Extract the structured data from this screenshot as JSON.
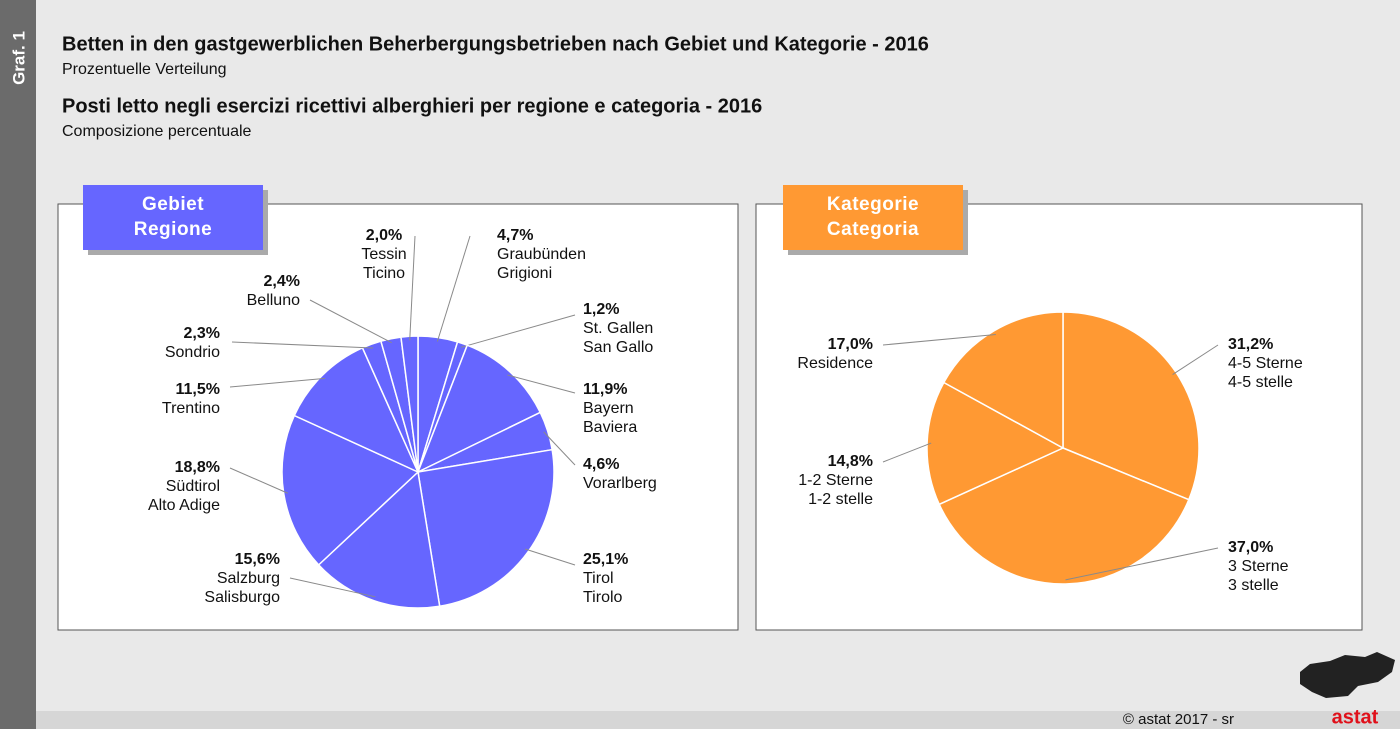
{
  "header": {
    "side_label": "Graf. 1",
    "title_de": "Betten in den gastgewerblichen Beherbergungsbetrieben nach Gebiet und Kategorie - 2016",
    "subtitle_de": "Prozentuelle Verteilung",
    "title_it": "Posti letto negli esercizi ricettivi alberghieri per regione e categoria - 2016",
    "subtitle_it": "Composizione percentuale"
  },
  "footer": {
    "copyright": "© astat 2017 - sr",
    "logo": "astat"
  },
  "chart_data": [
    {
      "type": "pie",
      "title": [
        "Gebiet",
        "Regione"
      ],
      "color": "#6666ff",
      "categories": [
        [
          "Graubünden",
          "Grigioni"
        ],
        [
          "St. Gallen",
          "San Gallo"
        ],
        [
          "Bayern",
          "Baviera"
        ],
        [
          "Vorarlberg"
        ],
        [
          "Tirol",
          "Tirolo"
        ],
        [
          "Salzburg",
          "Salisburgo"
        ],
        [
          "Südtirol",
          "Alto Adige"
        ],
        [
          "Trentino"
        ],
        [
          "Sondrio"
        ],
        [
          "Belluno"
        ],
        [
          "Tessin",
          "Ticino"
        ]
      ],
      "values": [
        4.7,
        1.2,
        11.9,
        4.6,
        25.1,
        15.6,
        18.8,
        11.5,
        2.3,
        2.4,
        2.0
      ],
      "value_labels": [
        "4,7%",
        "1,2%",
        "11,9%",
        "4,6%",
        "25,1%",
        "15,6%",
        "18,8%",
        "11,5%",
        "2,3%",
        "2,4%",
        "2,0%"
      ]
    },
    {
      "type": "pie",
      "title": [
        "Kategorie",
        "Categoria"
      ],
      "color": "#ff9933",
      "categories": [
        [
          "4-5 Sterne",
          "4-5 stelle"
        ],
        [
          "3 Sterne",
          "3 stelle"
        ],
        [
          "1-2 Sterne",
          "1-2 stelle"
        ],
        [
          "Residence"
        ]
      ],
      "values": [
        31.2,
        37.0,
        14.8,
        17.0
      ],
      "value_labels": [
        "31,2%",
        "37,0%",
        "14,8%",
        "17,0%"
      ]
    }
  ]
}
